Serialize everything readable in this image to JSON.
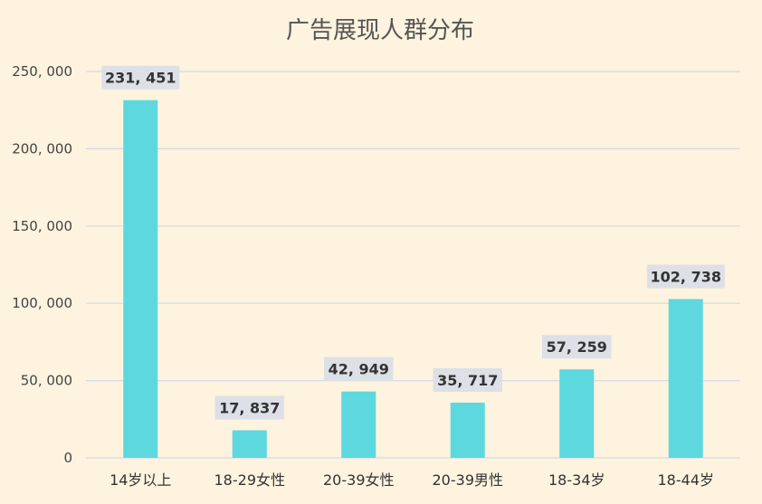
{
  "chart_data": {
    "type": "bar",
    "title": "广告展现人群分布",
    "categories": [
      "14岁以上",
      "18-29女性",
      "20-39女性",
      "20-39男性",
      "18-34岁",
      "18-44岁"
    ],
    "values": [
      231451,
      17837,
      42949,
      35717,
      57259,
      102738
    ],
    "value_labels": [
      "231, 451",
      "17, 837",
      "42, 949",
      "35, 717",
      "57, 259",
      "102, 738"
    ],
    "y_ticks": [
      0,
      50000,
      100000,
      150000,
      200000,
      250000
    ],
    "y_tick_labels": [
      "0",
      "50, 000",
      "100, 000",
      "150, 000",
      "200, 000",
      "250, 000"
    ],
    "ylim": [
      0,
      250000
    ],
    "grid": true,
    "colors": {
      "bar": "#5dd8df",
      "label_bg": "#dde0e6",
      "gridline": "#d6dae2",
      "background": "#fdf3de"
    }
  }
}
